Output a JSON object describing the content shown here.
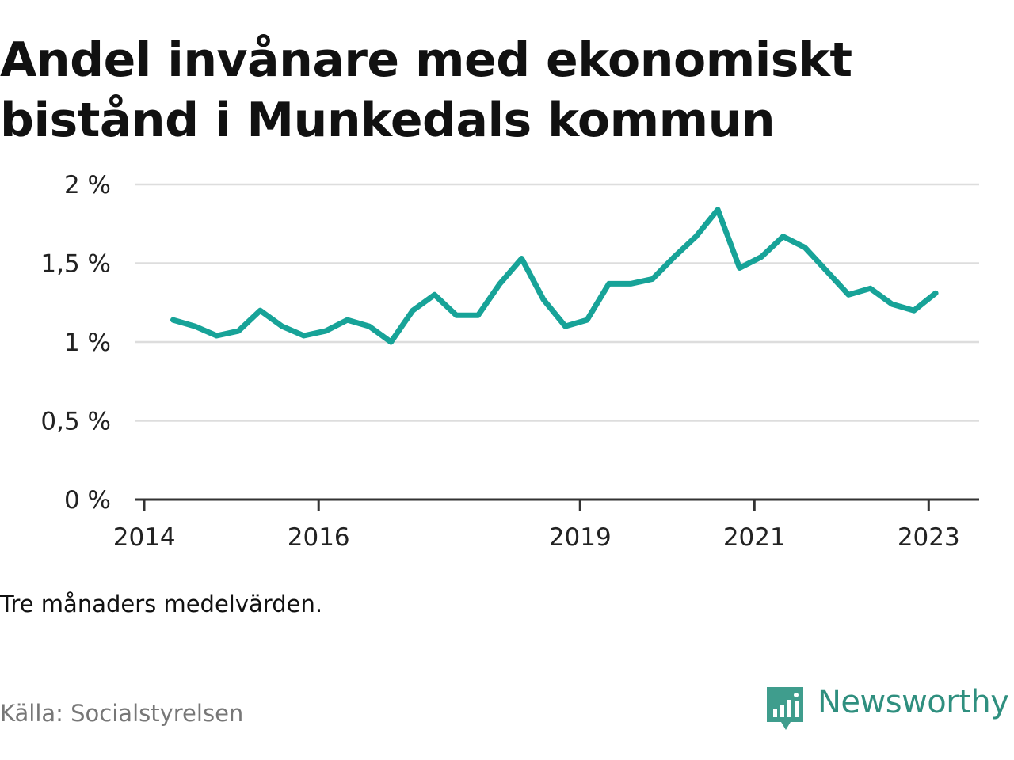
{
  "title": "Andel invånare med ekonomiskt bistånd i Munkedals kommun",
  "note": "Tre månaders medelvärden.",
  "source": "Källa: Socialstyrelsen",
  "brand": {
    "name": "Newsworthy",
    "icon": "newsworthy-logo-icon",
    "color": "#2f8f7f"
  },
  "chart_data": {
    "type": "line",
    "title": "Andel invånare med ekonomiskt bistånd i Munkedals kommun",
    "xlabel": "",
    "ylabel": "",
    "ylim": [
      0,
      2
    ],
    "yticks": [
      0,
      0.5,
      1,
      1.5,
      2
    ],
    "ytick_labels": [
      "0 %",
      "0,5 %",
      "1 %",
      "1,5 %",
      "2 %"
    ],
    "xticks": [
      2014,
      2016,
      2019,
      2021,
      2023
    ],
    "xtick_labels": [
      "2014",
      "2016",
      "2019",
      "2021",
      "2023"
    ],
    "grid": true,
    "line_color": "#17a398",
    "series": [
      {
        "name": "",
        "points": [
          [
            2014.33,
            1.14
          ],
          [
            2014.58,
            1.1
          ],
          [
            2014.83,
            1.04
          ],
          [
            2015.08,
            1.07
          ],
          [
            2015.33,
            1.2
          ],
          [
            2015.58,
            1.1
          ],
          [
            2015.83,
            1.04
          ],
          [
            2016.08,
            1.07
          ],
          [
            2016.33,
            1.14
          ],
          [
            2016.58,
            1.1
          ],
          [
            2016.83,
            1.0
          ],
          [
            2017.08,
            1.2
          ],
          [
            2017.33,
            1.3
          ],
          [
            2017.58,
            1.17
          ],
          [
            2017.83,
            1.17
          ],
          [
            2018.08,
            1.37
          ],
          [
            2018.33,
            1.53
          ],
          [
            2018.58,
            1.27
          ],
          [
            2018.83,
            1.1
          ],
          [
            2019.08,
            1.14
          ],
          [
            2019.33,
            1.37
          ],
          [
            2019.58,
            1.37
          ],
          [
            2019.83,
            1.4
          ],
          [
            2020.08,
            1.54
          ],
          [
            2020.33,
            1.67
          ],
          [
            2020.58,
            1.84
          ],
          [
            2020.83,
            1.47
          ],
          [
            2021.08,
            1.54
          ],
          [
            2021.33,
            1.67
          ],
          [
            2021.58,
            1.6
          ],
          [
            2021.83,
            1.45
          ],
          [
            2022.08,
            1.3
          ],
          [
            2022.33,
            1.34
          ],
          [
            2022.58,
            1.24
          ],
          [
            2022.83,
            1.2
          ],
          [
            2023.08,
            1.31
          ]
        ]
      }
    ]
  }
}
